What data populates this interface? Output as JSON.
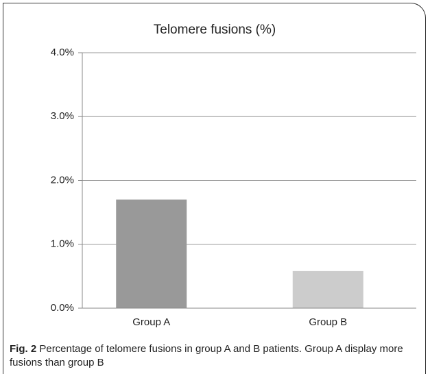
{
  "chart_data": {
    "type": "bar",
    "title": "Telomere fusions (%)",
    "categories": [
      "Group A",
      "Group B"
    ],
    "values": [
      1.7,
      0.58
    ],
    "colors": [
      "#999999",
      "#cccccc"
    ],
    "ylim": [
      0,
      4
    ],
    "yticks": [
      {
        "value": 0,
        "label": "0.0%"
      },
      {
        "value": 1,
        "label": "1.0%"
      },
      {
        "value": 2,
        "label": "2.0%"
      },
      {
        "value": 3,
        "label": "3.0%"
      },
      {
        "value": 4,
        "label": "4.0%"
      }
    ],
    "grid": true
  },
  "caption": {
    "label": "Fig. 2",
    "text": "Percentage of telomere fusions in group A and B patients. Group A display more fusions than group B"
  }
}
